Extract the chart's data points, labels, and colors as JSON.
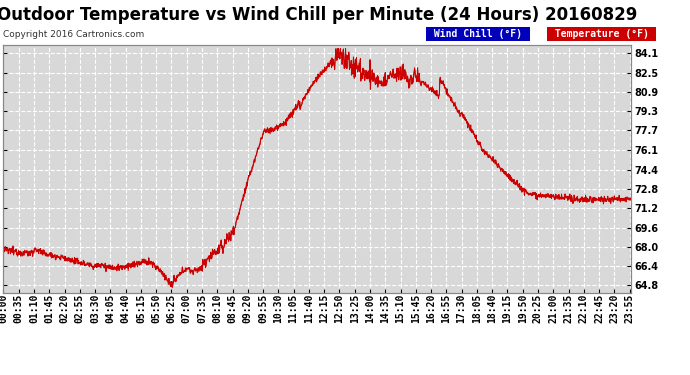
{
  "title": "Outdoor Temperature vs Wind Chill per Minute (24 Hours) 20160829",
  "copyright": "Copyright 2016 Cartronics.com",
  "legend_items": [
    {
      "label": "Wind Chill (°F)",
      "bg_color": "#0000bb",
      "text_color": "#ffffff"
    },
    {
      "label": "Temperature (°F)",
      "bg_color": "#cc0000",
      "text_color": "#ffffff"
    }
  ],
  "yticks": [
    64.8,
    66.4,
    68.0,
    69.6,
    71.2,
    72.8,
    74.4,
    76.1,
    77.7,
    79.3,
    80.9,
    82.5,
    84.1
  ],
  "ylim": [
    64.2,
    84.8
  ],
  "line_color": "#cc0000",
  "background_color": "#ffffff",
  "plot_bg_color": "#d8d8d8",
  "grid_color": "#ffffff",
  "title_fontsize": 12,
  "tick_fontsize": 7,
  "xtick_interval_minutes": 35,
  "total_minutes": 1440
}
